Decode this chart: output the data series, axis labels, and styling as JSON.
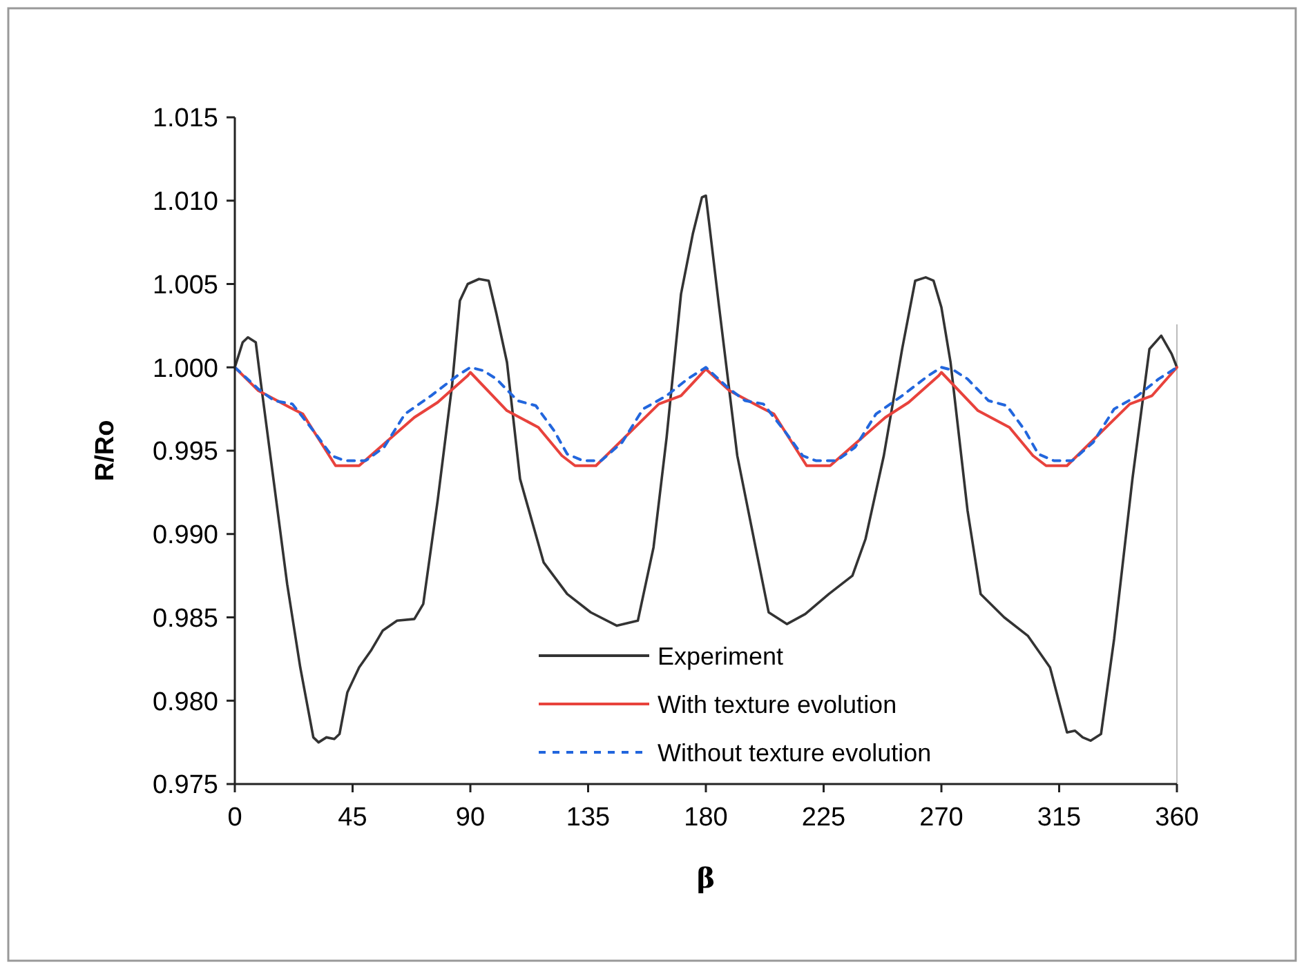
{
  "chart_data": {
    "type": "line",
    "xlabel": "β",
    "ylabel": "R/Ro",
    "xlim": [
      0,
      360
    ],
    "xticks": [
      0,
      45,
      90,
      135,
      180,
      225,
      270,
      315,
      360
    ],
    "ylim": [
      0.975,
      1.015
    ],
    "yticks": [
      {
        "value": 0.975,
        "label": "0.975"
      },
      {
        "value": 0.98,
        "label": "0.980"
      },
      {
        "value": 0.985,
        "label": "0.985"
      },
      {
        "value": 0.99,
        "label": "0.990"
      },
      {
        "value": 0.995,
        "label": "0.995"
      },
      {
        "value": 1.0,
        "label": "1.000"
      },
      {
        "value": 1.005,
        "label": "1.005"
      },
      {
        "value": 1.01,
        "label": "1.010"
      },
      {
        "value": 1.015,
        "label": "1.015"
      }
    ],
    "grid": false,
    "legend": "bottom",
    "marker": "none",
    "series": [
      {
        "name": "Experiment",
        "color": "#333333",
        "line_style": "solid",
        "x": [
          0,
          3,
          5,
          8,
          10,
          15,
          20,
          25,
          30,
          32,
          35,
          38,
          40,
          43,
          47.5,
          52,
          56.5,
          62,
          68.6,
          72,
          77.5,
          83,
          86,
          89,
          93.3,
          97,
          100,
          104,
          109,
          118,
          127,
          136,
          146,
          154,
          160,
          165,
          170.5,
          175,
          178.5,
          180,
          185,
          192,
          199,
          204,
          211,
          218,
          227,
          236,
          241,
          248,
          255,
          260,
          264,
          267,
          270,
          273.5,
          280,
          285,
          294,
          303,
          311.5,
          318,
          321,
          324,
          327,
          331,
          336,
          343,
          349.5,
          354,
          358,
          360
        ],
        "values": [
          1.0,
          1.0015,
          1.0018,
          1.0015,
          0.999,
          0.993,
          0.987,
          0.982,
          0.9778,
          0.9775,
          0.9778,
          0.9777,
          0.978,
          0.9805,
          0.982,
          0.983,
          0.9842,
          0.9848,
          0.9849,
          0.9858,
          0.992,
          0.9989,
          1.004,
          1.005,
          1.0053,
          1.0052,
          1.0032,
          1.0003,
          0.9933,
          0.9883,
          0.9864,
          0.9853,
          0.9845,
          0.9848,
          0.9892,
          0.9958,
          1.0044,
          1.008,
          1.0102,
          1.0103,
          1.0037,
          0.9947,
          0.9892,
          0.9853,
          0.9846,
          0.9852,
          0.9864,
          0.9875,
          0.9897,
          0.9947,
          1.0011,
          1.0052,
          1.0054,
          1.0052,
          1.0036,
          1.0003,
          0.9914,
          0.9864,
          0.985,
          0.9839,
          0.982,
          0.9781,
          0.9782,
          0.9778,
          0.9776,
          0.978,
          0.9837,
          0.9933,
          1.0011,
          1.0019,
          1.0008,
          1.0
        ]
      },
      {
        "name": "With texture evolution",
        "color": "#e8423c",
        "line_style": "solid",
        "x": [
          0,
          9,
          21,
          26,
          38.5,
          47.5,
          68.6,
          77.5,
          89,
          90,
          104,
          116,
          125,
          130,
          138,
          162,
          170.5,
          180,
          189,
          201,
          206,
          218.5,
          227.5,
          248.6,
          257.5,
          269,
          270,
          284,
          296,
          305,
          310,
          318,
          342,
          350.5,
          360
        ],
        "values": [
          1.0,
          0.9986,
          0.9976,
          0.9972,
          0.9941,
          0.9941,
          0.997,
          0.9979,
          0.9995,
          0.9997,
          0.9974,
          0.9964,
          0.9947,
          0.9941,
          0.9941,
          0.9978,
          0.9983,
          0.9999,
          0.9986,
          0.9976,
          0.9972,
          0.9941,
          0.9941,
          0.997,
          0.9979,
          0.9995,
          0.9997,
          0.9974,
          0.9964,
          0.9947,
          0.9941,
          0.9941,
          0.9978,
          0.9983,
          1.0
        ]
      },
      {
        "name": "Without texture evolution",
        "color": "#2266dd",
        "line_style": "dashed",
        "x": [
          0,
          9,
          15,
          22,
          30,
          37,
          42,
          50,
          57,
          65,
          75,
          85,
          90,
          95,
          100,
          108,
          115,
          122,
          127,
          133,
          140,
          148,
          156,
          165,
          173,
          180,
          189,
          195,
          202,
          210,
          217,
          222,
          230,
          237,
          245,
          255,
          265,
          270,
          275,
          280,
          288,
          295,
          302,
          307,
          313,
          320,
          328,
          336,
          345,
          353,
          360
        ],
        "values": [
          1.0,
          0.9987,
          0.998,
          0.9978,
          0.9962,
          0.9947,
          0.9944,
          0.9944,
          0.9952,
          0.9972,
          0.9983,
          0.9995,
          1.0,
          0.9998,
          0.9993,
          0.998,
          0.9977,
          0.9962,
          0.9948,
          0.9944,
          0.9944,
          0.9955,
          0.9975,
          0.9983,
          0.9993,
          1.0,
          0.9987,
          0.998,
          0.9978,
          0.9962,
          0.9947,
          0.9944,
          0.9944,
          0.9952,
          0.9972,
          0.9983,
          0.9995,
          1.0,
          0.9998,
          0.9993,
          0.998,
          0.9977,
          0.9962,
          0.9948,
          0.9944,
          0.9944,
          0.9955,
          0.9975,
          0.9983,
          0.9993,
          1.0
        ]
      }
    ]
  }
}
